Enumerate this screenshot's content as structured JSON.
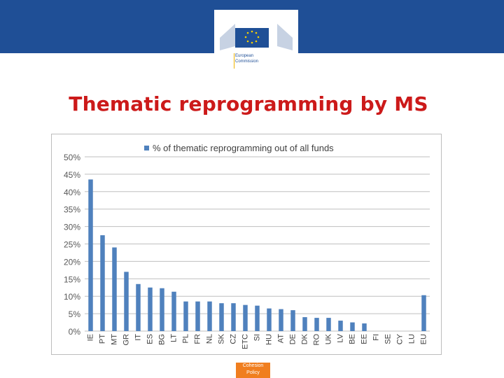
{
  "header": {
    "org_line1": "European",
    "org_line2": "Commission"
  },
  "slide": {
    "title": "Thematic reprogramming by MS"
  },
  "footer": {
    "line1": "Cohesion",
    "line2": "Policy"
  },
  "colors": {
    "banner": "#1f4f96",
    "title": "#cc1a1a",
    "bar": "#4f81bd",
    "grid": "#bfbfbf",
    "footer": "#f07e1f"
  },
  "chart_data": {
    "type": "bar",
    "categories": [
      "IE",
      "PT",
      "MT",
      "GR",
      "IT",
      "ES",
      "BG",
      "LT",
      "PL",
      "FR",
      "NL",
      "SK",
      "CZ",
      "ETC",
      "SI",
      "HU",
      "AT",
      "DE",
      "DK",
      "RO",
      "UK",
      "LV",
      "BE",
      "EE",
      "FI",
      "SE",
      "CY",
      "LU",
      "EU"
    ],
    "series": [
      {
        "name": "% of thematic reprogramming out of all funds",
        "values": [
          43.5,
          27.5,
          24,
          17,
          13.5,
          12.5,
          12.3,
          11.3,
          8.5,
          8.5,
          8.5,
          8,
          8,
          7.5,
          7.3,
          6.5,
          6.3,
          6,
          4,
          3.8,
          3.8,
          3,
          2.5,
          2.2,
          0,
          0,
          0,
          0,
          10.3
        ]
      }
    ],
    "y_ticks": [
      "0%",
      "5%",
      "10%",
      "15%",
      "20%",
      "25%",
      "30%",
      "35%",
      "40%",
      "45%",
      "50%"
    ],
    "ylim": [
      0,
      50
    ],
    "grid": true,
    "legend": "top"
  }
}
